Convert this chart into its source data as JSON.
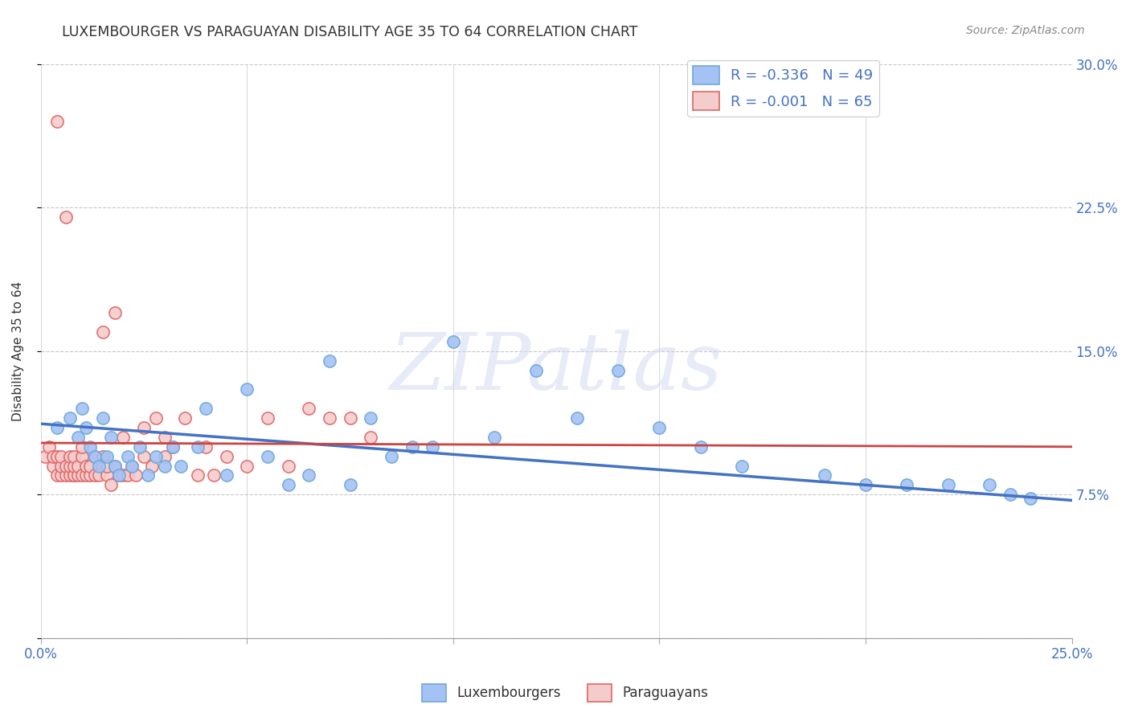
{
  "title": "LUXEMBOURGER VS PARAGUAYAN DISABILITY AGE 35 TO 64 CORRELATION CHART",
  "source_text": "Source: ZipAtlas.com",
  "ylabel": "Disability Age 35 to 64",
  "xlim": [
    0.0,
    0.25
  ],
  "ylim": [
    0.0,
    0.3
  ],
  "xticks": [
    0.0,
    0.05,
    0.1,
    0.15,
    0.2,
    0.25
  ],
  "yticks_right": [
    0.0,
    0.075,
    0.15,
    0.225,
    0.3
  ],
  "ytick_labels_right": [
    "",
    "7.5%",
    "15.0%",
    "22.5%",
    "30.0%"
  ],
  "background_color": "#ffffff",
  "plot_bg_color": "#ffffff",
  "grid_color": "#c8c8c8",
  "title_color": "#333333",
  "axis_label_color": "#4472c4",
  "blue_edge_color": "#6fa8dc",
  "pink_edge_color": "#e06666",
  "blue_fill_color": "#a4c2f4",
  "pink_fill_color": "#f4cccc",
  "blue_line_color": "#4472c4",
  "pink_line_color": "#cc4444",
  "legend_label_blue": "Luxembourgers",
  "legend_label_pink": "Paraguayans",
  "watermark_text": "ZIPatlas",
  "lux_x": [
    0.004,
    0.007,
    0.009,
    0.01,
    0.011,
    0.012,
    0.013,
    0.014,
    0.015,
    0.016,
    0.017,
    0.018,
    0.019,
    0.021,
    0.022,
    0.024,
    0.026,
    0.028,
    0.03,
    0.032,
    0.034,
    0.038,
    0.04,
    0.045,
    0.05,
    0.055,
    0.06,
    0.07,
    0.08,
    0.09,
    0.1,
    0.11,
    0.12,
    0.13,
    0.15,
    0.16,
    0.17,
    0.19,
    0.2,
    0.21,
    0.22,
    0.23,
    0.235,
    0.24,
    0.065,
    0.075,
    0.085,
    0.095,
    0.14
  ],
  "lux_y": [
    0.11,
    0.115,
    0.105,
    0.12,
    0.11,
    0.1,
    0.095,
    0.09,
    0.115,
    0.095,
    0.105,
    0.09,
    0.085,
    0.095,
    0.09,
    0.1,
    0.085,
    0.095,
    0.09,
    0.1,
    0.09,
    0.1,
    0.12,
    0.085,
    0.13,
    0.095,
    0.08,
    0.145,
    0.115,
    0.1,
    0.155,
    0.105,
    0.14,
    0.115,
    0.11,
    0.1,
    0.09,
    0.085,
    0.08,
    0.08,
    0.08,
    0.08,
    0.075,
    0.073,
    0.085,
    0.08,
    0.095,
    0.1,
    0.14
  ],
  "par_x": [
    0.001,
    0.002,
    0.003,
    0.003,
    0.004,
    0.004,
    0.005,
    0.005,
    0.005,
    0.006,
    0.006,
    0.007,
    0.007,
    0.007,
    0.008,
    0.008,
    0.008,
    0.008,
    0.009,
    0.009,
    0.01,
    0.01,
    0.01,
    0.011,
    0.011,
    0.012,
    0.012,
    0.013,
    0.013,
    0.014,
    0.015,
    0.015,
    0.015,
    0.016,
    0.016,
    0.017,
    0.018,
    0.019,
    0.02,
    0.02,
    0.021,
    0.022,
    0.023,
    0.025,
    0.025,
    0.027,
    0.03,
    0.03,
    0.032,
    0.035,
    0.038,
    0.04,
    0.042,
    0.045,
    0.05,
    0.055,
    0.06,
    0.065,
    0.07,
    0.075,
    0.08,
    0.004,
    0.006,
    0.018,
    0.028
  ],
  "par_y": [
    0.095,
    0.1,
    0.09,
    0.095,
    0.085,
    0.095,
    0.085,
    0.09,
    0.095,
    0.085,
    0.09,
    0.085,
    0.09,
    0.095,
    0.085,
    0.085,
    0.09,
    0.095,
    0.085,
    0.09,
    0.085,
    0.095,
    0.1,
    0.085,
    0.09,
    0.085,
    0.09,
    0.085,
    0.095,
    0.085,
    0.09,
    0.095,
    0.16,
    0.085,
    0.09,
    0.08,
    0.09,
    0.085,
    0.085,
    0.105,
    0.085,
    0.09,
    0.085,
    0.095,
    0.11,
    0.09,
    0.095,
    0.105,
    0.1,
    0.115,
    0.085,
    0.1,
    0.085,
    0.095,
    0.09,
    0.115,
    0.09,
    0.12,
    0.115,
    0.115,
    0.105,
    0.27,
    0.22,
    0.17,
    0.115
  ],
  "blue_trend_x": [
    0.0,
    0.25
  ],
  "blue_trend_y": [
    0.112,
    0.072
  ],
  "pink_trend_x": [
    0.0,
    0.25
  ],
  "pink_trend_y": [
    0.102,
    0.1
  ]
}
